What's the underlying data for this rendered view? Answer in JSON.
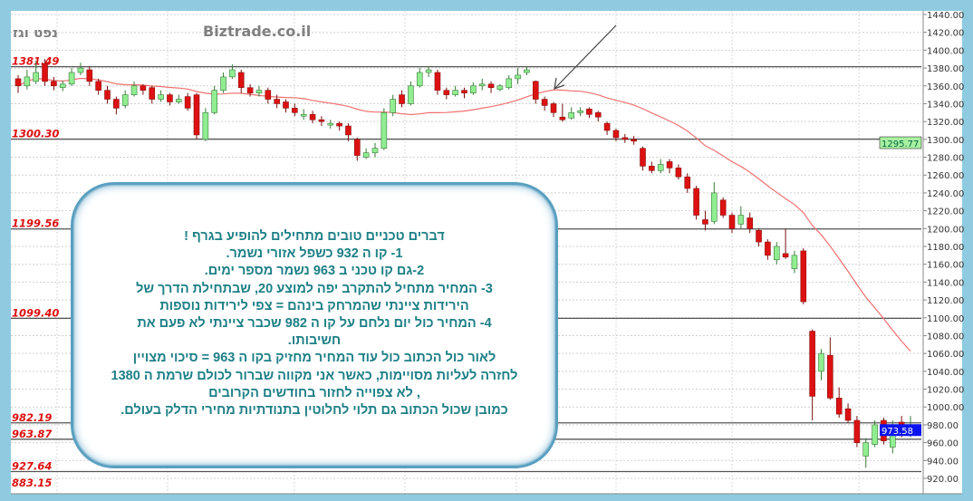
{
  "header": {
    "instrument": "נפט וגז",
    "watermark": "Biztrade.co.il"
  },
  "colors": {
    "background_frame": "#8fcbe0",
    "up_candle": "#90ee90",
    "down_candle": "#dd1111",
    "moving_average": "#f07070",
    "level_label": "#dd1111",
    "note_text": "#1d7f86",
    "last_price_bg": "#0a14f0",
    "ma_price_bg": "#a8f0a0"
  },
  "note": {
    "lines": [
      "דברים טכניים טובים  מתחילים  להופיע  בגרף !",
      "1- קו  ה  932  כשפל  אזורי  נשמר.",
      "2-גם  קו טכני  ב 963  נשמר    מספר  ימים.",
      "3-  המחיר   מתחיל   להתקרב   יפה למוצע 20,  שבתחילת  הדרך  של",
      "הירידות  ציינתי  שהמרחק  בינהם =     צפי לירידות נוספות",
      "4- המחיר כול יום  נלחם  על קו  ה 982     שכבר  ציינתי לא  פעם  את",
      "חשיבותו.",
      "לאור  כול  הכתוב  כול עוד  המחיר  מחזיק   בקו  ה 963  =  סיכוי  מצויין",
      "לחזרה  לעליות מסויימות, כאשר  אני מקווה  שברור  לכולם  שרמת  ה 1380",
      ", לא  צפוייה  לחזור   בחודשים  הקרובים",
      "כמובן  שכול  הכתוב  גם   תלוי    לחלוטין  בתנודתיות מחירי  הדלק  בעולם."
    ]
  },
  "chart_data": {
    "type": "candlestick",
    "title": "",
    "ylim": [
      920,
      1440
    ],
    "y_ticks": [
      "1440.00",
      "1420.00",
      "1400.00",
      "1380.00",
      "1360.00",
      "1340.00",
      "1320.00",
      "1300.00",
      "1280.00",
      "1260.00",
      "1240.00",
      "1220.00",
      "1200.00",
      "1180.00",
      "1160.00",
      "1140.00",
      "1120.00",
      "1100.00",
      "1080.00",
      "1060.00",
      "1040.00",
      "1020.00",
      "1000.00",
      "980.00",
      "960.00",
      "940.00",
      "920.00"
    ],
    "grid": true,
    "moving_average_period": 20,
    "levels": [
      {
        "value": 1381.49,
        "label": "1381.49"
      },
      {
        "value": 1300.3,
        "label": "1300.30"
      },
      {
        "value": 1199.56,
        "label": "1199.56"
      },
      {
        "value": 1099.4,
        "label": "1099.40"
      },
      {
        "value": 982.19,
        "label": "982.19"
      },
      {
        "value": 963.87,
        "label": "963.87"
      },
      {
        "value": 927.64,
        "label": "927.64"
      },
      {
        "value": 883.15,
        "label": "883.15"
      }
    ],
    "last_price": {
      "value": 973.58,
      "label": "973.58"
    },
    "ma_price": {
      "value": 1295.77,
      "label": "1295.77"
    },
    "ohlc": [
      [
        1368,
        1372,
        1352,
        1360
      ],
      [
        1360,
        1378,
        1356,
        1370
      ],
      [
        1365,
        1388,
        1362,
        1375
      ],
      [
        1385,
        1390,
        1360,
        1365
      ],
      [
        1365,
        1370,
        1355,
        1360
      ],
      [
        1358,
        1366,
        1354,
        1362
      ],
      [
        1362,
        1380,
        1360,
        1375
      ],
      [
        1375,
        1386,
        1372,
        1380
      ],
      [
        1378,
        1382,
        1360,
        1365
      ],
      [
        1365,
        1368,
        1350,
        1355
      ],
      [
        1355,
        1360,
        1340,
        1345
      ],
      [
        1345,
        1348,
        1328,
        1335
      ],
      [
        1338,
        1355,
        1335,
        1350
      ],
      [
        1350,
        1365,
        1348,
        1360
      ],
      [
        1360,
        1362,
        1350,
        1355
      ],
      [
        1358,
        1360,
        1340,
        1345
      ],
      [
        1345,
        1355,
        1342,
        1350
      ],
      [
        1350,
        1352,
        1338,
        1342
      ],
      [
        1342,
        1350,
        1340,
        1345
      ],
      [
        1348,
        1352,
        1332,
        1335
      ],
      [
        1350,
        1352,
        1300,
        1305
      ],
      [
        1300,
        1335,
        1298,
        1330
      ],
      [
        1330,
        1360,
        1328,
        1355
      ],
      [
        1355,
        1375,
        1352,
        1370
      ],
      [
        1370,
        1384,
        1368,
        1378
      ],
      [
        1375,
        1378,
        1352,
        1358
      ],
      [
        1358,
        1362,
        1348,
        1352
      ],
      [
        1352,
        1360,
        1348,
        1355
      ],
      [
        1355,
        1358,
        1340,
        1345
      ],
      [
        1345,
        1350,
        1335,
        1340
      ],
      [
        1342,
        1345,
        1330,
        1335
      ],
      [
        1335,
        1340,
        1326,
        1330
      ],
      [
        1326,
        1334,
        1322,
        1328
      ],
      [
        1328,
        1332,
        1318,
        1322
      ],
      [
        1322,
        1326,
        1315,
        1320
      ],
      [
        1316,
        1322,
        1312,
        1318
      ],
      [
        1318,
        1320,
        1310,
        1315
      ],
      [
        1315,
        1318,
        1298,
        1305
      ],
      [
        1300,
        1302,
        1276,
        1282
      ],
      [
        1280,
        1290,
        1278,
        1285
      ],
      [
        1285,
        1296,
        1280,
        1290
      ],
      [
        1290,
        1335,
        1288,
        1330
      ],
      [
        1330,
        1350,
        1326,
        1345
      ],
      [
        1350,
        1355,
        1336,
        1340
      ],
      [
        1340,
        1365,
        1338,
        1360
      ],
      [
        1360,
        1380,
        1358,
        1375
      ],
      [
        1375,
        1382,
        1370,
        1378
      ],
      [
        1375,
        1378,
        1350,
        1355
      ],
      [
        1355,
        1358,
        1345,
        1350
      ],
      [
        1350,
        1360,
        1348,
        1355
      ],
      [
        1355,
        1358,
        1346,
        1352
      ],
      [
        1352,
        1364,
        1350,
        1360
      ],
      [
        1360,
        1368,
        1355,
        1362
      ],
      [
        1362,
        1365,
        1352,
        1358
      ],
      [
        1356,
        1362,
        1354,
        1360
      ],
      [
        1358,
        1372,
        1356,
        1368
      ],
      [
        1368,
        1380,
        1362,
        1372
      ],
      [
        1375,
        1382,
        1372,
        1378
      ],
      [
        1365,
        1366,
        1340,
        1345
      ],
      [
        1345,
        1348,
        1332,
        1338
      ],
      [
        1340,
        1342,
        1325,
        1330
      ],
      [
        1325,
        1340,
        1320,
        1322
      ],
      [
        1324,
        1336,
        1322,
        1330
      ],
      [
        1330,
        1336,
        1326,
        1332
      ],
      [
        1334,
        1336,
        1324,
        1328
      ],
      [
        1330,
        1332,
        1320,
        1325
      ],
      [
        1318,
        1320,
        1305,
        1310
      ],
      [
        1310,
        1312,
        1298,
        1302
      ],
      [
        1302,
        1306,
        1296,
        1300
      ],
      [
        1300,
        1304,
        1294,
        1298
      ],
      [
        1290,
        1292,
        1265,
        1270
      ],
      [
        1270,
        1275,
        1262,
        1265
      ],
      [
        1265,
        1278,
        1262,
        1272
      ],
      [
        1275,
        1278,
        1262,
        1268
      ],
      [
        1268,
        1272,
        1255,
        1258
      ],
      [
        1258,
        1262,
        1240,
        1245
      ],
      [
        1245,
        1248,
        1210,
        1215
      ],
      [
        1210,
        1220,
        1198,
        1205
      ],
      [
        1208,
        1252,
        1205,
        1240
      ],
      [
        1232,
        1235,
        1212,
        1215
      ],
      [
        1215,
        1218,
        1195,
        1200
      ],
      [
        1205,
        1225,
        1200,
        1215
      ],
      [
        1212,
        1218,
        1195,
        1200
      ],
      [
        1198,
        1200,
        1180,
        1185
      ],
      [
        1185,
        1188,
        1165,
        1170
      ],
      [
        1165,
        1185,
        1160,
        1180
      ],
      [
        1172,
        1200,
        1166,
        1168
      ],
      [
        1155,
        1175,
        1150,
        1170
      ],
      [
        1175,
        1178,
        1115,
        1118
      ],
      [
        1085,
        1087,
        985,
        1012
      ],
      [
        1040,
        1065,
        1030,
        1060
      ],
      [
        1058,
        1078,
        1008,
        1010
      ],
      [
        1010,
        1022,
        988,
        992
      ],
      [
        998,
        1004,
        982,
        985
      ],
      [
        985,
        990,
        955,
        960
      ],
      [
        945,
        965,
        932,
        960
      ],
      [
        958,
        985,
        955,
        980
      ],
      [
        985,
        988,
        958,
        962
      ],
      [
        955,
        985,
        948,
        980
      ],
      [
        983,
        990,
        966,
        970
      ],
      [
        970,
        990,
        966,
        974
      ]
    ]
  }
}
